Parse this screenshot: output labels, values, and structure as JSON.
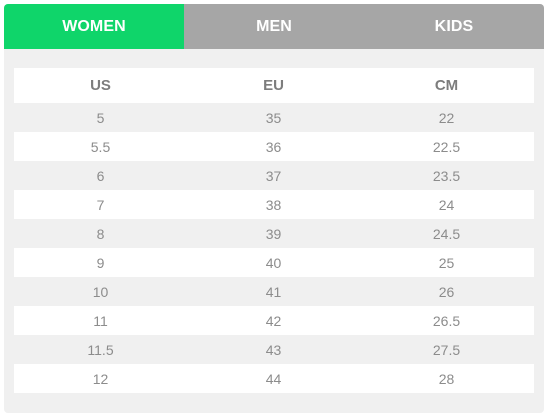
{
  "tabs": [
    {
      "label": "WOMEN",
      "active": true
    },
    {
      "label": "MEN",
      "active": false
    },
    {
      "label": "KIDS",
      "active": false
    }
  ],
  "colors": {
    "active_tab": "#0fd56a",
    "inactive_tab": "#a6a6a6",
    "panel_bg": "#f0f0f0",
    "text": "#8c8c8c"
  },
  "table": {
    "headers": [
      "US",
      "EU",
      "CM"
    ],
    "rows": [
      [
        "5",
        "35",
        "22"
      ],
      [
        "5.5",
        "36",
        "22.5"
      ],
      [
        "6",
        "37",
        "23.5"
      ],
      [
        "7",
        "38",
        "24"
      ],
      [
        "8",
        "39",
        "24.5"
      ],
      [
        "9",
        "40",
        "25"
      ],
      [
        "10",
        "41",
        "26"
      ],
      [
        "11",
        "42",
        "26.5"
      ],
      [
        "11.5",
        "43",
        "27.5"
      ],
      [
        "12",
        "44",
        "28"
      ]
    ]
  }
}
